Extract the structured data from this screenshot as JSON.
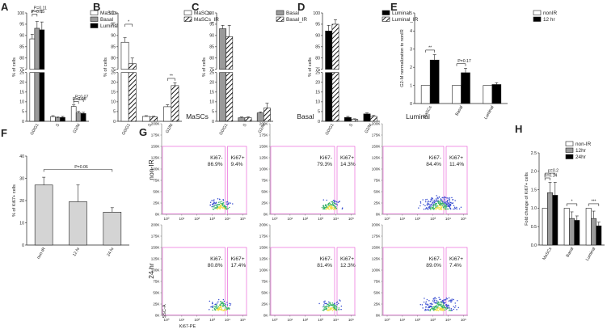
{
  "panels": [
    {
      "id": "A",
      "letter": "A",
      "type": "bar",
      "ylabel": "% of cells",
      "ylim": [
        0,
        100
      ],
      "break": [
        25,
        75
      ],
      "yticks": [
        "0",
        "5",
        "10",
        "15",
        "20",
        "25",
        "75",
        "80",
        "85",
        "90",
        "95",
        "100"
      ],
      "categories": [
        "G0/G1",
        "S",
        "G2/M"
      ],
      "legend": [
        "MaSCs",
        "Basal",
        "Luminal"
      ],
      "series": [
        {
          "name": "MaSCs",
          "values": [
            88.5,
            2.4,
            7.6
          ],
          "err": [
            2.0,
            0.5,
            0.8
          ]
        },
        {
          "name": "Basal",
          "values": [
            93.2,
            1.8,
            4.3
          ],
          "err": [
            3.0,
            0.4,
            0.8
          ]
        },
        {
          "name": "Luminal",
          "values": [
            92.5,
            2.0,
            4.0
          ],
          "err": [
            3.5,
            0.5,
            0.6
          ]
        }
      ],
      "annotations": [
        {
          "text": "P=0.05",
          "cat": 0,
          "from": 0,
          "to": 1,
          "y": 99.5
        },
        {
          "text": "P=0.11",
          "cat": 0,
          "from": 0,
          "to": 2,
          "y": 101
        },
        {
          "text": "P=0.06",
          "cat": 2,
          "from": 0,
          "to": 1,
          "y": 10.2
        },
        {
          "text": "P=0.07",
          "cat": 2,
          "from": 0,
          "to": 2,
          "y": 11.2
        }
      ]
    },
    {
      "id": "B",
      "letter": "B",
      "type": "bar",
      "ylabel": "% of cells",
      "ylim": [
        0,
        100
      ],
      "break": [
        25,
        75
      ],
      "yticks": [
        "0",
        "5",
        "10",
        "15",
        "20",
        "25",
        "75",
        "80",
        "85",
        "90",
        "95",
        "100"
      ],
      "categories": [
        "G0/G1",
        "S",
        "G2/M"
      ],
      "legend": [
        "MaSCs",
        "MaSCs_IR"
      ],
      "series": [
        {
          "name": "MaSCs",
          "values": [
            87.0,
            2.5,
            7.5
          ],
          "err": [
            2.0,
            0.4,
            1.0
          ]
        },
        {
          "name": "MaSCs_IR",
          "values": [
            77.5,
            2.2,
            18.3
          ],
          "err": [
            2.5,
            0.4,
            1.5
          ]
        }
      ],
      "annotations": [
        {
          "text": "*",
          "cat": 0,
          "from": 0,
          "to": 1,
          "y": 95
        },
        {
          "text": "**",
          "cat": 2,
          "from": 0,
          "to": 1,
          "y": 22
        }
      ]
    },
    {
      "id": "C",
      "letter": "C",
      "type": "bar",
      "ylabel": "% of cells",
      "ylim": [
        0,
        100
      ],
      "break": [
        25,
        75
      ],
      "yticks": [
        "0",
        "5",
        "10",
        "15",
        "20",
        "25",
        "75",
        "80",
        "85",
        "90",
        "95",
        "100"
      ],
      "categories": [
        "G0/G1",
        "S",
        "G2/M"
      ],
      "legend": [
        "Basal",
        "Basal_IR"
      ],
      "series": [
        {
          "name": "Basal",
          "values": [
            93.0,
            1.8,
            4.3
          ],
          "err": [
            1.5,
            0.4,
            0.5
          ]
        },
        {
          "name": "Basal_IR",
          "values": [
            89.5,
            1.8,
            6.8
          ],
          "err": [
            5.0,
            0.5,
            2.5
          ]
        }
      ],
      "annotations": []
    },
    {
      "id": "D",
      "letter": "D",
      "type": "bar",
      "ylabel": "% of cells",
      "ylim": [
        0,
        100
      ],
      "break": [
        25,
        75
      ],
      "yticks": [
        "0",
        "5",
        "10",
        "15",
        "20",
        "25",
        "75",
        "80",
        "85",
        "90",
        "95",
        "100"
      ],
      "categories": [
        "G0/G1",
        "S",
        "G2/M"
      ],
      "legend": [
        "Luminal",
        "Luminal_IR"
      ],
      "series": [
        {
          "name": "Luminal",
          "values": [
            92.0,
            2.0,
            3.8
          ],
          "err": [
            2.5,
            0.5,
            0.5
          ]
        },
        {
          "name": "Luminal_IR",
          "values": [
            95.0,
            1.0,
            2.5
          ],
          "err": [
            2.0,
            0.3,
            0.5
          ]
        }
      ],
      "annotations": []
    },
    {
      "id": "E",
      "letter": "E",
      "type": "bar",
      "ylabel": "G2-M normalization to nonIR",
      "ylim": [
        0,
        5
      ],
      "yticks": [
        "0",
        "1",
        "2",
        "3",
        "4",
        "5"
      ],
      "categories": [
        "MaSCs",
        "Basal",
        "Luminal"
      ],
      "legend": [
        "nonIR",
        "12 hr"
      ],
      "series": [
        {
          "name": "nonIR",
          "values": [
            1.0,
            1.0,
            1.0
          ],
          "err": [
            0,
            0,
            0
          ]
        },
        {
          "name": "12 hr",
          "values": [
            2.4,
            1.7,
            1.05
          ],
          "err": [
            0.3,
            0.25,
            0.1
          ]
        }
      ],
      "annotations": [
        {
          "text": "**",
          "cat": 0,
          "from": 0,
          "to": 1,
          "y": 2.95
        },
        {
          "text": "P=0.17",
          "cat": 1,
          "from": 0,
          "to": 1,
          "y": 2.2
        }
      ]
    },
    {
      "id": "F",
      "letter": "F",
      "type": "bar",
      "ylabel": "% of Ki67+ cells",
      "ylim": [
        0,
        40
      ],
      "yticks": [
        "0",
        "10",
        "20",
        "30",
        "40"
      ],
      "categories": [
        "non-IR",
        "12 hr",
        "24 hr"
      ],
      "legend": [],
      "series": [
        {
          "name": "",
          "values": [
            27.0,
            19.5,
            14.8
          ],
          "err": [
            3.5,
            7.5,
            2.0
          ]
        }
      ],
      "annotations": [
        {
          "text": "P=0.06",
          "cat_from": 0,
          "cat_to": 2,
          "y": 34
        }
      ]
    },
    {
      "id": "H",
      "letter": "H",
      "type": "bar",
      "ylabel": "Fold change of Ki67+ cells",
      "ylim": [
        0,
        2.5
      ],
      "yticks": [
        "0.0",
        "0.5",
        "1.0",
        "1.5",
        "2.0",
        "2.5"
      ],
      "categories": [
        "MaSCs",
        "Basal",
        "Luminal"
      ],
      "legend": [
        "non-IR",
        "12hr",
        "24hr"
      ],
      "series": [
        {
          "name": "non-IR",
          "values": [
            1.0,
            1.0,
            1.0
          ],
          "err": [
            0,
            0,
            0
          ]
        },
        {
          "name": "12hr",
          "values": [
            1.42,
            0.72,
            0.72
          ],
          "err": [
            0.28,
            0.18,
            0.2
          ]
        },
        {
          "name": "24hr",
          "values": [
            1.35,
            0.67,
            0.52
          ],
          "err": [
            0.35,
            0.12,
            0.1
          ]
        }
      ],
      "annotations": [
        {
          "text": "p=0.14",
          "cat": 0,
          "from": 0,
          "to": 1,
          "y": 1.82
        },
        {
          "text": "p=0.2",
          "cat": 0,
          "from": 0,
          "to": 2,
          "y": 1.95
        },
        {
          "text": "*",
          "cat": 1,
          "from": 0,
          "to": 2,
          "y": 1.12
        },
        {
          "text": "***",
          "cat": 2,
          "from": 0,
          "to": 2,
          "y": 1.12
        }
      ]
    }
  ],
  "flow": {
    "letter": "G",
    "columns": [
      "MaSCs",
      "Basal",
      "Luminal"
    ],
    "rows": [
      "non-IR",
      "24 hr"
    ],
    "yticks": [
      "0K",
      "25K",
      "50K",
      "75K",
      "100K",
      "125K",
      "150K",
      "175K",
      "200K"
    ],
    "xticks": [
      "10⁰",
      "10¹",
      "10²",
      "10³",
      "10⁴",
      "10⁵"
    ],
    "xlabel": "Ki67-PE",
    "ylabel": "SSC-A",
    "plots": [
      {
        "neg_label": "Ki67-",
        "neg_value": "86.9%",
        "pos_label": "Ki67+",
        "pos_value": "9.4%"
      },
      {
        "neg_label": "Ki67-",
        "neg_value": "79.3%",
        "pos_label": "Ki67+",
        "pos_value": "14.3%"
      },
      {
        "neg_label": "Ki67-",
        "neg_value": "84.4%",
        "pos_label": "Ki67+",
        "pos_value": "11.4%"
      },
      {
        "neg_label": "Ki67-",
        "neg_value": "80.8%",
        "pos_label": "Ki67+",
        "pos_value": "17.4%"
      },
      {
        "neg_label": "Ki67-",
        "neg_value": "81.4%",
        "pos_label": "Ki67+",
        "pos_value": "12.3%"
      },
      {
        "neg_label": "Ki67-",
        "neg_value": "89.0%",
        "pos_label": "Ki67+",
        "pos_value": "7.4%"
      }
    ]
  },
  "styles": {
    "bar_palette": [
      "#ffffff",
      "#9a9a9a",
      "#000000"
    ],
    "hatched_series": [
      "MaSCs_IR",
      "Basal_IR",
      "Luminal_IR"
    ],
    "F_bar": "#d4d4d4",
    "gate_color": "#e64fd2"
  }
}
